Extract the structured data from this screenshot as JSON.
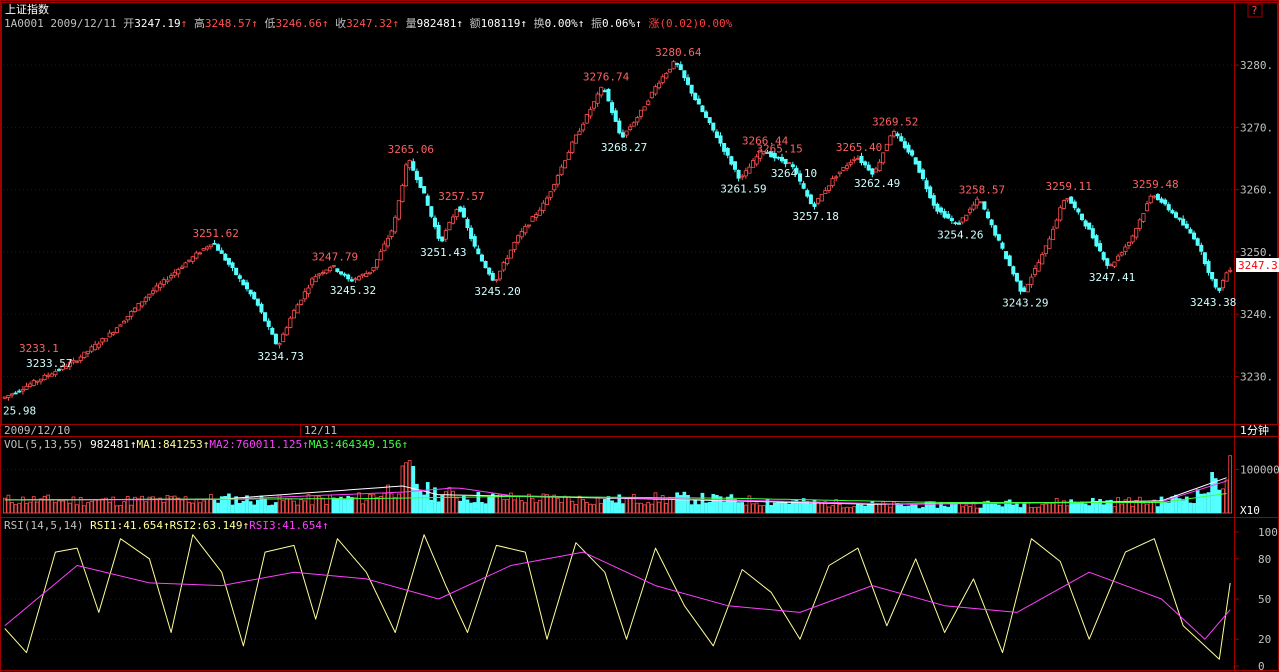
{
  "header": {
    "title": "上证指数",
    "code": "1A0001",
    "date": "2009/12/11",
    "open_label": "开",
    "open": "3247.19",
    "high_label": "高",
    "high": "3248.57",
    "low_label": "低",
    "low": "3246.66",
    "close_label": "收",
    "close": "3247.32",
    "volume_label": "量",
    "volume": "982481",
    "amount_label": "额",
    "amount": "108119",
    "turnover_label": "换",
    "turnover": "0.00%",
    "amplitude_label": "振",
    "amplitude": "0.06%",
    "change_label": "涨",
    "change": "(0.02)0.00%"
  },
  "corner_button": "?",
  "last_price_tag": "3247.3",
  "period_label": "1分钟",
  "date_axis": [
    "2009/12/10",
    "12/11"
  ],
  "vol_panel": {
    "title": "VOL(5,13,55)",
    "value": "982481",
    "ma1_label": "MA1:",
    "ma1": "841253",
    "ma2_label": "MA2:",
    "ma2": "760011.125",
    "ma3_label": "MA3:",
    "ma3": "464349.156",
    "scale_label": "X10"
  },
  "rsi_panel": {
    "title": "RSI(14,5,14)",
    "rsi1_label": "RSI1:",
    "rsi1": "41.654",
    "rsi2_label": "RSI2:",
    "rsi2": "63.149",
    "rsi3_label": "RSI3:",
    "rsi3": "41.654"
  },
  "colors": {
    "up": "#ff5050",
    "down": "#54ffff",
    "frame": "#a00000",
    "axis_text": "#c0c0c0",
    "yellow": "#ffff99",
    "magenta": "#ff40ff",
    "green": "#40ff40",
    "white": "#ffffff",
    "tag_bg": "#ffffff",
    "tag_text": "#ff0000"
  },
  "chart_data": [
    {
      "type": "candlestick",
      "title": "上证指数",
      "y_ticks": [
        3230,
        3240,
        3250,
        3260,
        3270,
        3280
      ],
      "y_tick_labels": [
        "3230.",
        "3240.",
        "3250.",
        "3260.",
        "3270.",
        "3280."
      ],
      "ylim": [
        3223,
        3285
      ],
      "x_tick_labels": [
        "2009/12/10",
        "12/11"
      ],
      "price_path": [
        [
          0,
          3226.5
        ],
        [
          10,
          3229.5
        ],
        [
          20,
          3232.5
        ],
        [
          30,
          3237
        ],
        [
          40,
          3243
        ],
        [
          50,
          3248
        ],
        [
          58,
          3251.62
        ],
        [
          65,
          3246
        ],
        [
          70,
          3242
        ],
        [
          76,
          3234.73
        ],
        [
          80,
          3240
        ],
        [
          86,
          3246
        ],
        [
          91,
          3247.79
        ],
        [
          96,
          3245.32
        ],
        [
          102,
          3247
        ],
        [
          108,
          3254
        ],
        [
          112,
          3265.06
        ],
        [
          116,
          3260
        ],
        [
          121,
          3251.43
        ],
        [
          126,
          3257.57
        ],
        [
          131,
          3250
        ],
        [
          136,
          3245.2
        ],
        [
          142,
          3252
        ],
        [
          150,
          3258
        ],
        [
          158,
          3268
        ],
        [
          166,
          3276.74
        ],
        [
          171,
          3268.27
        ],
        [
          176,
          3272
        ],
        [
          181,
          3277
        ],
        [
          186,
          3280.64
        ],
        [
          192,
          3274
        ],
        [
          198,
          3268
        ],
        [
          204,
          3261.59
        ],
        [
          210,
          3266.44
        ],
        [
          214,
          3265
        ],
        [
          218,
          3264.1
        ],
        [
          224,
          3257.18
        ],
        [
          230,
          3262
        ],
        [
          236,
          3265.4
        ],
        [
          241,
          3262.49
        ],
        [
          246,
          3269.52
        ],
        [
          252,
          3265
        ],
        [
          258,
          3257
        ],
        [
          264,
          3254.26
        ],
        [
          270,
          3258.57
        ],
        [
          276,
          3251
        ],
        [
          282,
          3243.29
        ],
        [
          288,
          3250
        ],
        [
          294,
          3259.11
        ],
        [
          300,
          3254
        ],
        [
          306,
          3247.41
        ],
        [
          312,
          3252
        ],
        [
          318,
          3259.48
        ],
        [
          324,
          3256
        ],
        [
          330,
          3252
        ],
        [
          336,
          3243.38
        ],
        [
          339,
          3247.32
        ]
      ],
      "annotations": [
        {
          "text": "25.98",
          "x": 1,
          "y": 3225.98,
          "kind": "low"
        },
        {
          "text": "3233.1",
          "x": 10,
          "y": 3233.1,
          "kind": "high"
        },
        {
          "text": "3233.57",
          "x": 12,
          "y": 3233.57,
          "kind": "low"
        },
        {
          "text": "3251.62",
          "x": 58,
          "y": 3251.62,
          "kind": "high"
        },
        {
          "text": "3234.73",
          "x": 76,
          "y": 3234.73,
          "kind": "low"
        },
        {
          "text": "3247.79",
          "x": 91,
          "y": 3247.79,
          "kind": "high"
        },
        {
          "text": "3245.32",
          "x": 96,
          "y": 3245.32,
          "kind": "low"
        },
        {
          "text": "3265.06",
          "x": 112,
          "y": 3265.06,
          "kind": "high"
        },
        {
          "text": "3251.43",
          "x": 121,
          "y": 3251.43,
          "kind": "low"
        },
        {
          "text": "3257.57",
          "x": 126,
          "y": 3257.57,
          "kind": "high"
        },
        {
          "text": "3245.20",
          "x": 136,
          "y": 3245.2,
          "kind": "low"
        },
        {
          "text": "3276.74",
          "x": 166,
          "y": 3276.74,
          "kind": "high"
        },
        {
          "text": "3268.27",
          "x": 171,
          "y": 3268.27,
          "kind": "low"
        },
        {
          "text": "3280.64",
          "x": 186,
          "y": 3280.64,
          "kind": "high"
        },
        {
          "text": "3261.59",
          "x": 204,
          "y": 3261.59,
          "kind": "low"
        },
        {
          "text": "3266.44",
          "x": 210,
          "y": 3266.44,
          "kind": "high"
        },
        {
          "text": "3265.15",
          "x": 214,
          "y": 3265.15,
          "kind": "high"
        },
        {
          "text": "3264.10",
          "x": 218,
          "y": 3264.1,
          "kind": "low"
        },
        {
          "text": "3257.18",
          "x": 224,
          "y": 3257.18,
          "kind": "low"
        },
        {
          "text": "3265.40",
          "x": 236,
          "y": 3265.4,
          "kind": "high"
        },
        {
          "text": "3262.49",
          "x": 241,
          "y": 3262.49,
          "kind": "low"
        },
        {
          "text": "3269.52",
          "x": 246,
          "y": 3269.52,
          "kind": "high"
        },
        {
          "text": "3254.26",
          "x": 264,
          "y": 3254.26,
          "kind": "low"
        },
        {
          "text": "3258.57",
          "x": 270,
          "y": 3258.57,
          "kind": "high"
        },
        {
          "text": "3243.29",
          "x": 282,
          "y": 3243.29,
          "kind": "low"
        },
        {
          "text": "3259.11",
          "x": 294,
          "y": 3259.11,
          "kind": "high"
        },
        {
          "text": "3247.41",
          "x": 306,
          "y": 3247.41,
          "kind": "low"
        },
        {
          "text": "3259.48",
          "x": 318,
          "y": 3259.48,
          "kind": "high"
        },
        {
          "text": "3243.38",
          "x": 336,
          "y": 3243.38,
          "kind": "low"
        }
      ]
    },
    {
      "type": "bar",
      "title": "VOL(5,13,55)",
      "y_ticks": [
        100000
      ],
      "y_tick_labels": [
        "100000"
      ],
      "ylim": [
        0,
        140000
      ],
      "volume_path": [
        [
          0,
          30000
        ],
        [
          30,
          28000
        ],
        [
          60,
          32000
        ],
        [
          80,
          28000
        ],
        [
          100,
          34000
        ],
        [
          108,
          60000
        ],
        [
          112,
          92000
        ],
        [
          116,
          50000
        ],
        [
          130,
          35000
        ],
        [
          170,
          30000
        ],
        [
          186,
          34000
        ],
        [
          200,
          30000
        ],
        [
          220,
          24000
        ],
        [
          250,
          17000
        ],
        [
          280,
          22000
        ],
        [
          300,
          26000
        ],
        [
          320,
          26000
        ],
        [
          330,
          40000
        ],
        [
          339,
          98000
        ]
      ],
      "ma_lines": [
        {
          "name": "MA1",
          "path": [
            [
              0,
              30000
            ],
            [
              60,
              32000
            ],
            [
              110,
              62000
            ],
            [
              120,
              42000
            ],
            [
              180,
              32000
            ],
            [
              240,
              20000
            ],
            [
              300,
              25000
            ],
            [
              320,
              28000
            ],
            [
              339,
              84000
            ]
          ]
        },
        {
          "name": "MA2",
          "path": [
            [
              0,
              30000
            ],
            [
              60,
              31000
            ],
            [
              110,
              48000
            ],
            [
              125,
              58000
            ],
            [
              140,
              40000
            ],
            [
              200,
              30000
            ],
            [
              250,
              20000
            ],
            [
              300,
              24000
            ],
            [
              320,
              26000
            ],
            [
              339,
              76000
            ]
          ]
        },
        {
          "name": "MA3",
          "path": [
            [
              0,
              30000
            ],
            [
              100,
              33000
            ],
            [
              140,
              38000
            ],
            [
              200,
              34000
            ],
            [
              260,
              24000
            ],
            [
              320,
              24000
            ],
            [
              339,
              46000
            ]
          ]
        }
      ]
    },
    {
      "type": "line",
      "title": "RSI(14,5,14)",
      "y_ticks": [
        0,
        20,
        50,
        80,
        100
      ],
      "y_tick_labels": [
        "0",
        "20",
        "50",
        "80",
        "100"
      ],
      "ylim": [
        0,
        100
      ],
      "series": [
        {
          "name": "RSI1",
          "path": [
            [
              0,
              28
            ],
            [
              6,
              10
            ],
            [
              14,
              85
            ],
            [
              20,
              88
            ],
            [
              26,
              40
            ],
            [
              32,
              95
            ],
            [
              40,
              80
            ],
            [
              46,
              25
            ],
            [
              52,
              98
            ],
            [
              60,
              70
            ],
            [
              66,
              15
            ],
            [
              72,
              85
            ],
            [
              80,
              90
            ],
            [
              86,
              35
            ],
            [
              92,
              95
            ],
            [
              100,
              70
            ],
            [
              108,
              25
            ],
            [
              116,
              98
            ],
            [
              122,
              60
            ],
            [
              128,
              25
            ],
            [
              136,
              90
            ],
            [
              144,
              85
            ],
            [
              150,
              20
            ],
            [
              158,
              92
            ],
            [
              166,
              70
            ],
            [
              172,
              20
            ],
            [
              180,
              88
            ],
            [
              188,
              45
            ],
            [
              196,
              15
            ],
            [
              204,
              72
            ],
            [
              212,
              55
            ],
            [
              220,
              20
            ],
            [
              228,
              75
            ],
            [
              236,
              88
            ],
            [
              244,
              30
            ],
            [
              252,
              80
            ],
            [
              260,
              25
            ],
            [
              268,
              65
            ],
            [
              276,
              10
            ],
            [
              284,
              95
            ],
            [
              292,
              78
            ],
            [
              300,
              20
            ],
            [
              310,
              85
            ],
            [
              318,
              95
            ],
            [
              326,
              30
            ],
            [
              332,
              15
            ],
            [
              336,
              5
            ],
            [
              339,
              62
            ]
          ]
        },
        {
          "name": "RSI2",
          "path": [
            [
              0,
              30
            ],
            [
              20,
              75
            ],
            [
              40,
              62
            ],
            [
              60,
              60
            ],
            [
              80,
              70
            ],
            [
              100,
              65
            ],
            [
              120,
              50
            ],
            [
              140,
              75
            ],
            [
              160,
              85
            ],
            [
              180,
              60
            ],
            [
              200,
              45
            ],
            [
              220,
              40
            ],
            [
              240,
              60
            ],
            [
              260,
              45
            ],
            [
              280,
              40
            ],
            [
              300,
              70
            ],
            [
              320,
              50
            ],
            [
              332,
              20
            ],
            [
              339,
              42
            ]
          ]
        }
      ]
    }
  ]
}
